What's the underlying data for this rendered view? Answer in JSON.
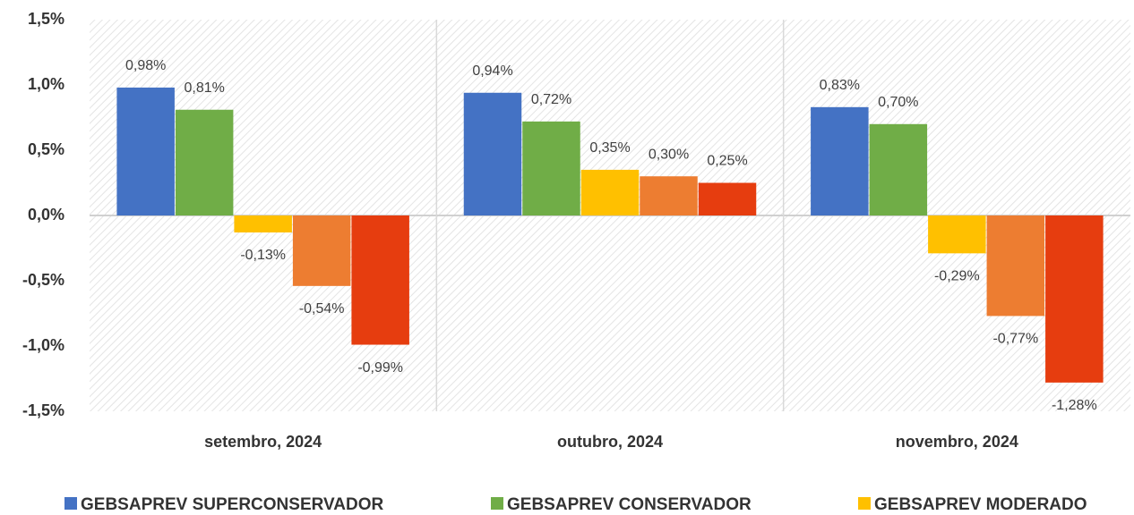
{
  "chart_data": {
    "type": "bar",
    "categories": [
      "setembro, 2024",
      "outubro, 2024",
      "novembro, 2024"
    ],
    "series": [
      {
        "name": "GEBSAPREV SUPERCONSERVADOR",
        "color": "#4472c4",
        "values": [
          0.98,
          0.94,
          0.83
        ],
        "value_labels": [
          "0,98%",
          "0,94%",
          "0,83%"
        ]
      },
      {
        "name": "GEBSAPREV CONSERVADOR",
        "color": "#70ad47",
        "values": [
          0.81,
          0.72,
          0.7
        ],
        "value_labels": [
          "0,81%",
          "0,72%",
          "0,70%"
        ]
      },
      {
        "name": "GEBSAPREV MODERADO",
        "color": "#ffc000",
        "values": [
          -0.13,
          0.35,
          -0.29
        ],
        "value_labels": [
          "-0,13%",
          "0,35%",
          "-0,29%"
        ]
      },
      {
        "color": "#ed7d31",
        "values": [
          -0.54,
          0.3,
          -0.77
        ],
        "value_labels": [
          "-0,54%",
          "0,30%",
          "-0,77%"
        ]
      },
      {
        "color": "#e63d0f",
        "values": [
          -0.99,
          0.25,
          -1.28
        ],
        "value_labels": [
          "-0,99%",
          "0,25%",
          "-1,28%"
        ]
      }
    ],
    "ylim": [
      -1.5,
      1.5
    ],
    "yticks": [
      {
        "value": -1.5,
        "label": "-1,5%"
      },
      {
        "value": -1.0,
        "label": "-1,0%"
      },
      {
        "value": -0.5,
        "label": "-0,5%"
      },
      {
        "value": 0,
        "label": "0,0%"
      },
      {
        "value": 0.5,
        "label": "0,5%"
      },
      {
        "value": 1.0,
        "label": "1,0%"
      },
      {
        "value": 1.5,
        "label": "1,5%"
      }
    ],
    "legend": "bottom"
  }
}
